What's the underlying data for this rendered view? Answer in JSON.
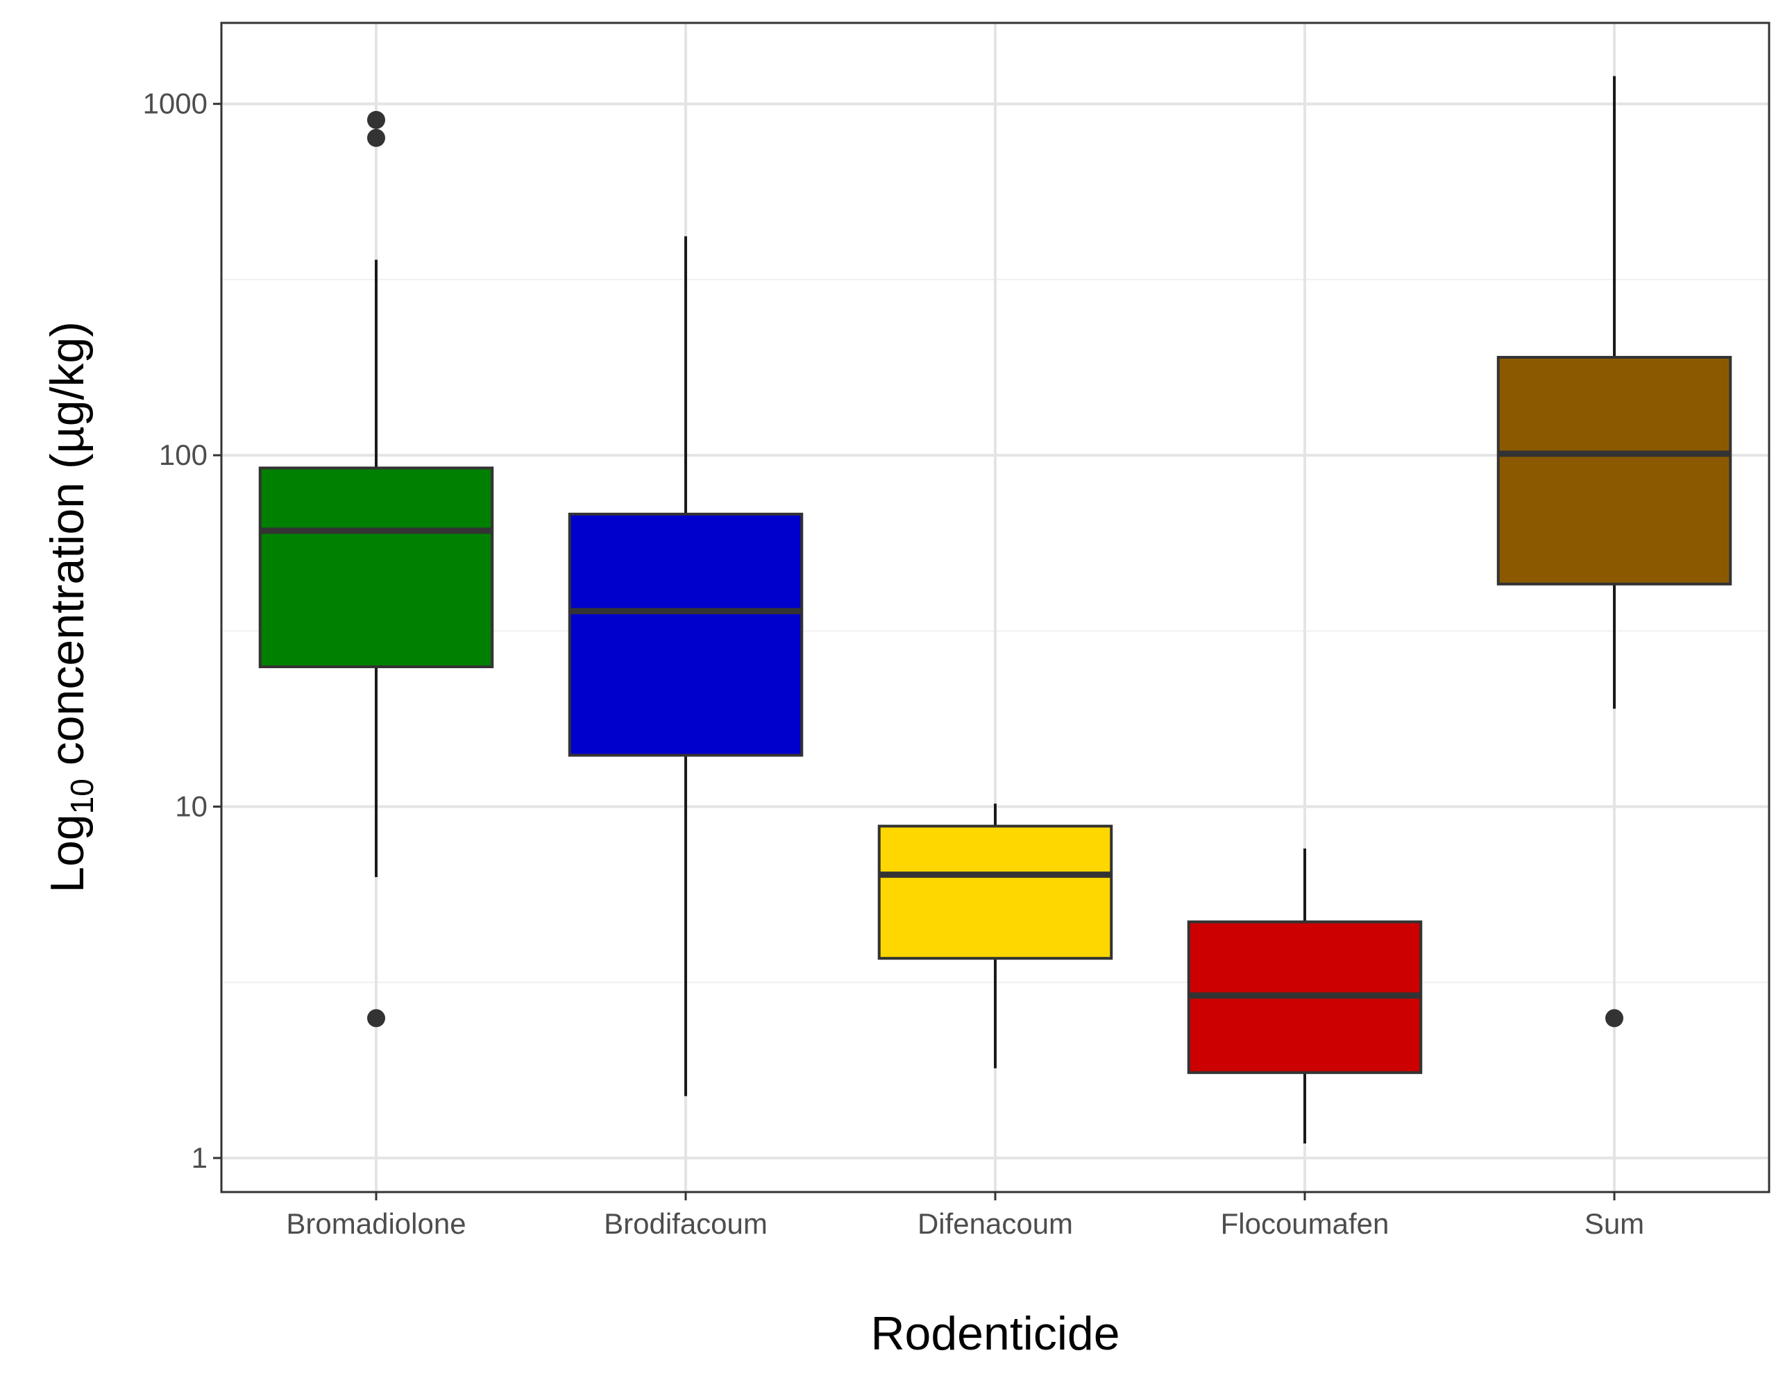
{
  "chart_data": {
    "type": "box",
    "title": "",
    "xlabel": "Rodenticide",
    "ylabel_prefix": "Log",
    "ylabel_subscript": "10",
    "ylabel_suffix": " concentration (µg/kg)",
    "y_scale": "log10",
    "ylim": [
      0.8,
      1700
    ],
    "y_ticks": [
      1,
      10,
      100,
      1000
    ],
    "y_tick_labels": [
      "1",
      "10",
      "100",
      "1000"
    ],
    "grid": true,
    "legend": "none",
    "categories": [
      "Bromadiolone",
      "Brodifacoum",
      "Difenacoum",
      "Flocoumafen",
      "Sum"
    ],
    "boxes": [
      {
        "name": "Bromadiolone",
        "color": "#008000",
        "whisker_low": 6.3,
        "q1": 25,
        "median": 61,
        "q3": 92,
        "whisker_high": 360,
        "outliers": [
          2.5,
          800,
          900
        ]
      },
      {
        "name": "Brodifacoum",
        "color": "#0000CD",
        "whisker_low": 1.5,
        "q1": 14,
        "median": 36,
        "q3": 68,
        "whisker_high": 420,
        "outliers": []
      },
      {
        "name": "Difenacoum",
        "color": "#FFD700",
        "whisker_low": 1.8,
        "q1": 3.7,
        "median": 6.4,
        "q3": 8.8,
        "whisker_high": 10.2,
        "outliers": []
      },
      {
        "name": "Flocoumafen",
        "color": "#CC0000",
        "whisker_low": 1.1,
        "q1": 1.75,
        "median": 2.9,
        "q3": 4.7,
        "whisker_high": 7.6,
        "outliers": []
      },
      {
        "name": "Sum",
        "color": "#8B5A00",
        "whisker_low": 19,
        "q1": 43,
        "median": 101,
        "q3": 190,
        "whisker_high": 1200,
        "outliers": [
          2.5
        ]
      }
    ]
  }
}
